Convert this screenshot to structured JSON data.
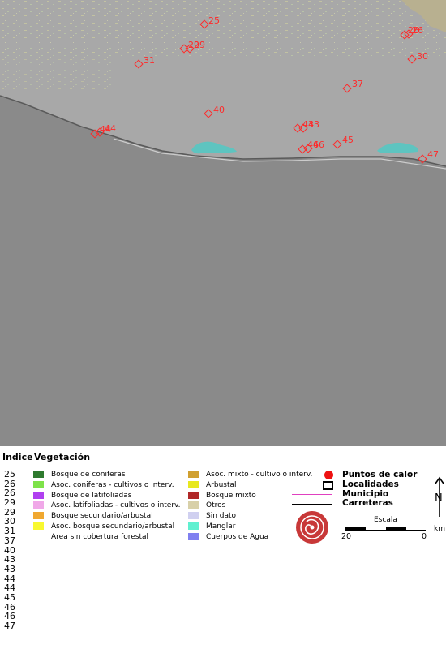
{
  "map": {
    "colors": {
      "land": "#a8a8a8",
      "sea": "#8a8a8a",
      "outer": "#888888",
      "lagoon": "#5ec4c0",
      "hot_marker": "#ff2a2a",
      "relief": "#c8c8a0"
    },
    "hotspots": [
      {
        "label": "25"
      },
      {
        "label": "26"
      },
      {
        "label": "26"
      },
      {
        "label": "29"
      },
      {
        "label": "29"
      },
      {
        "label": "30"
      },
      {
        "label": "31"
      },
      {
        "label": "37"
      },
      {
        "label": "40"
      },
      {
        "label": "43"
      },
      {
        "label": "43"
      },
      {
        "label": "44"
      },
      {
        "label": "44"
      },
      {
        "label": "45"
      },
      {
        "label": "46"
      },
      {
        "label": "46"
      },
      {
        "label": "47"
      }
    ]
  },
  "legend": {
    "index_title": "Indice",
    "vegetation_title": "Vegetación",
    "index_values": [
      "25",
      "26",
      "26",
      "29",
      "29",
      "30",
      "31",
      "37",
      "40",
      "43",
      "43",
      "44",
      "44",
      "45",
      "46",
      "46",
      "47"
    ],
    "vegetation_left": [
      {
        "label": "Bosque de coniferas",
        "color": "#2e7a2e"
      },
      {
        "label": "Asoc. coniferas - cultivos o interv.",
        "color": "#7ee24a"
      },
      {
        "label": "Bosque de latifoliadas",
        "color": "#b040f0"
      },
      {
        "label": "Asoc. latifoliadas - cultivos o interv.",
        "color": "#f0a8e8"
      },
      {
        "label": "Bosque secundario/arbustal",
        "color": "#f0a830"
      },
      {
        "label": "Asoc. bosque secundario/arbustal",
        "color": "#f8f830"
      },
      {
        "label": "Area sin cobertura forestal",
        "color": "#ffffff"
      }
    ],
    "vegetation_right": [
      {
        "label": "Asoc. mixto - cultivo o interv.",
        "color": "#d0a030"
      },
      {
        "label": "Arbustal",
        "color": "#e8e820"
      },
      {
        "label": "Bosque mixto",
        "color": "#b02828"
      },
      {
        "label": "Otros",
        "color": "#d8d0a8"
      },
      {
        "label": "Sin dato",
        "color": "#d0d0f0"
      },
      {
        "label": "Manglar",
        "color": "#60f0d0"
      },
      {
        "label": "Cuerpos de Agua",
        "color": "#8080f0"
      }
    ],
    "symbols": {
      "hotspots": "Puntos de calor",
      "localities": "Localidades",
      "municipality": "Municipio",
      "roads": "Carreteras"
    },
    "scale": {
      "title": "Escala",
      "left_value": "20",
      "right_value": "0",
      "unit": "km"
    },
    "north_icon": "north-arrow-icon",
    "north_letter": "N",
    "seal_icon": "institution-seal-icon"
  }
}
